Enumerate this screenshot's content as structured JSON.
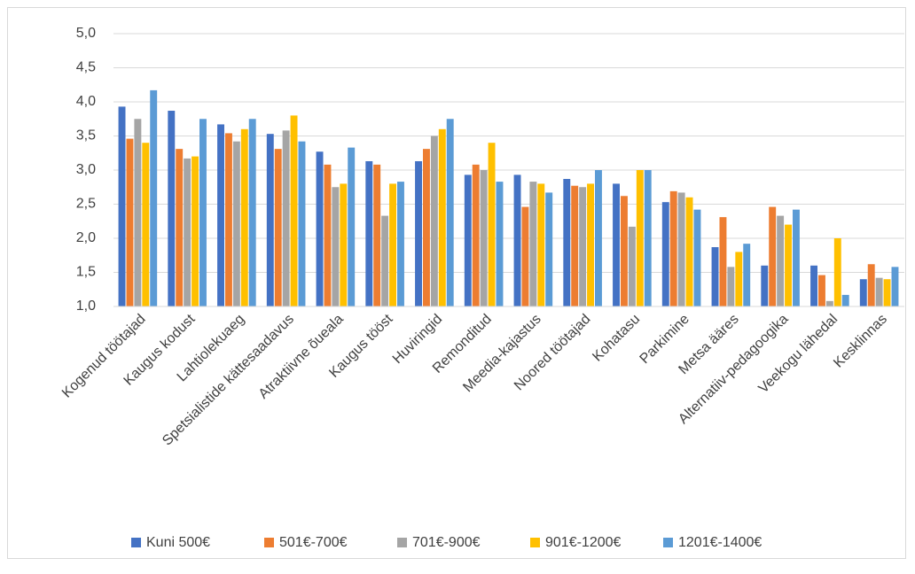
{
  "chart_data": {
    "type": "bar",
    "categories": [
      "Kogenud töötajad",
      "Kaugus kodust",
      "Lahtiolekuaeg",
      "Spetsialistide kättesaadavus",
      "Atraktiivne õueala",
      "Kaugus tööst",
      "Huviringid",
      "Remonditud",
      "Meedia-kajastus",
      "Noored töötajad",
      "Kohatasu",
      "Parkimine",
      "Metsa ääres",
      "Alternatiiv-pedagoogika",
      "Veekogu lähedal",
      "Kesklinnas"
    ],
    "series": [
      {
        "name": "Kuni 500€",
        "color": "#4472c4",
        "values": [
          3.93,
          3.87,
          3.67,
          3.53,
          3.27,
          3.13,
          3.13,
          2.93,
          2.93,
          2.87,
          2.8,
          2.53,
          1.87,
          1.6,
          1.6,
          1.4
        ]
      },
      {
        "name": "501€-700€",
        "color": "#ed7d31",
        "values": [
          3.46,
          3.31,
          3.54,
          3.31,
          3.08,
          3.08,
          3.31,
          3.08,
          2.46,
          2.77,
          2.62,
          2.69,
          2.31,
          2.46,
          1.46,
          1.62
        ]
      },
      {
        "name": "701€-900€",
        "color": "#a5a5a5",
        "values": [
          3.75,
          3.17,
          3.42,
          3.58,
          2.75,
          2.33,
          3.5,
          3.0,
          2.83,
          2.75,
          2.17,
          2.67,
          1.58,
          2.33,
          1.08,
          1.42
        ]
      },
      {
        "name": "901€-1200€",
        "color": "#ffc000",
        "values": [
          3.4,
          3.2,
          3.6,
          3.8,
          2.8,
          2.8,
          3.6,
          3.4,
          2.8,
          2.8,
          3.0,
          2.6,
          1.8,
          2.2,
          2.0,
          1.4
        ]
      },
      {
        "name": "1201€-1400€",
        "color": "#5b9bd5",
        "values": [
          4.17,
          3.75,
          3.75,
          3.42,
          3.33,
          2.83,
          3.75,
          2.83,
          2.67,
          3.0,
          3.0,
          2.42,
          1.92,
          2.42,
          1.17,
          1.58
        ]
      }
    ],
    "ylim": [
      1,
      5
    ],
    "yticks": [
      {
        "value": 1,
        "label": "1,0"
      },
      {
        "value": 1.5,
        "label": "1,5"
      },
      {
        "value": 2,
        "label": "2,0"
      },
      {
        "value": 2.5,
        "label": "2,5"
      },
      {
        "value": 3,
        "label": "3,0"
      },
      {
        "value": 3.5,
        "label": "3,5"
      },
      {
        "value": 4,
        "label": "4,0"
      },
      {
        "value": 4.5,
        "label": "4,5"
      },
      {
        "value": 5,
        "label": "5,0"
      }
    ],
    "grid": true,
    "legend": "bottom"
  }
}
